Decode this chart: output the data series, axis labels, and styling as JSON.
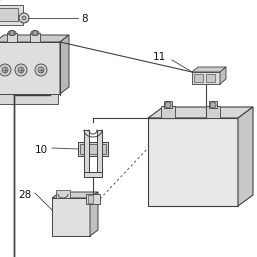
{
  "bg_color": "#ffffff",
  "line_color": "#404040",
  "fill_light": "#e8e8e8",
  "fill_mid": "#d0d0d0",
  "fill_dark": "#b8b8b8",
  "text_color": "#111111",
  "label_8": "8",
  "label_10": "10",
  "label_11": "11",
  "label_28": "28",
  "fig_w": 2.57,
  "fig_h": 2.57,
  "dpi": 100
}
